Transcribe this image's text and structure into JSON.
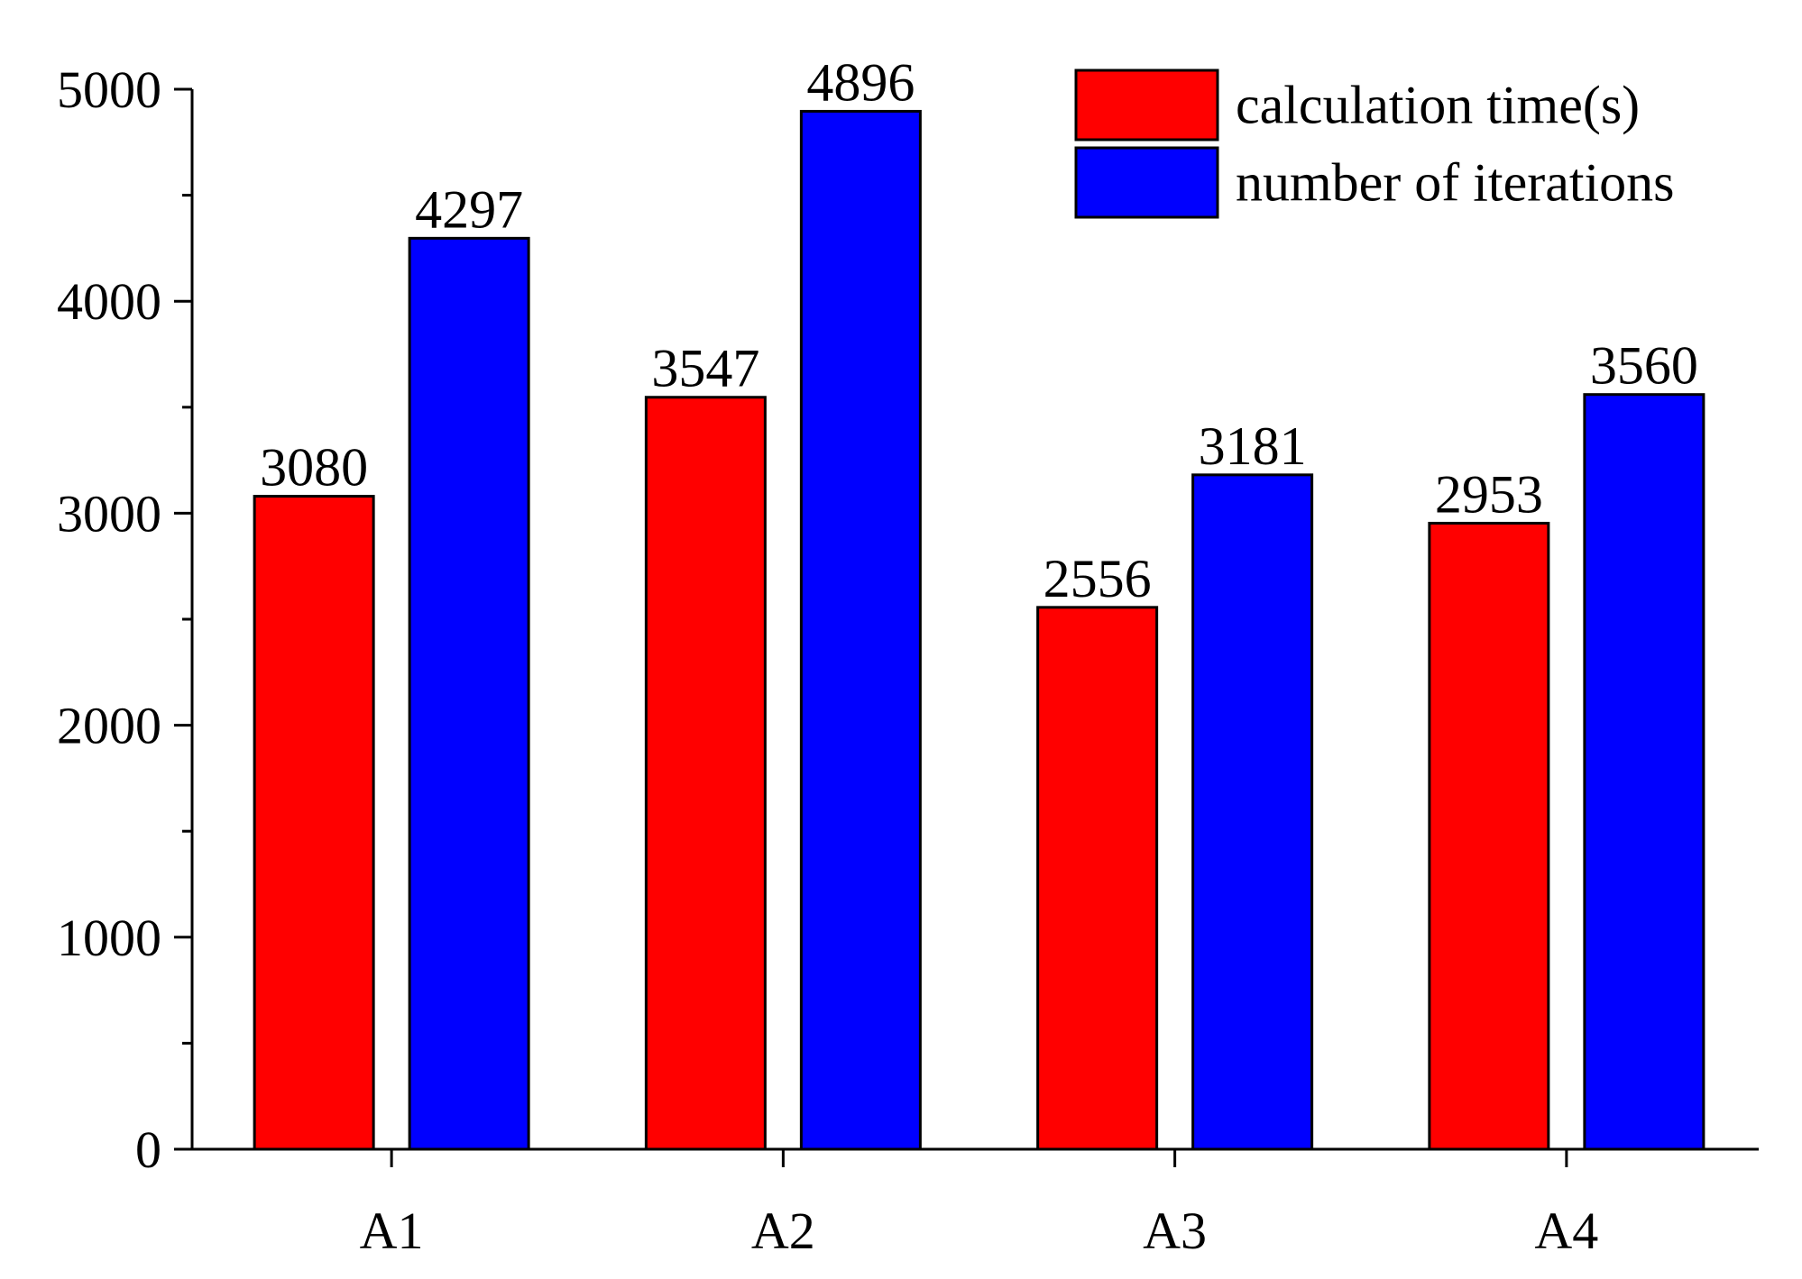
{
  "chart_data": {
    "type": "bar",
    "categories": [
      "A1",
      "A2",
      "A3",
      "A4"
    ],
    "series": [
      {
        "name": "calculation time(s)",
        "color": "#ff0000",
        "values": [
          3080,
          3547,
          2556,
          2953
        ],
        "labels": [
          "3080",
          "3547",
          "2556",
          "2953"
        ]
      },
      {
        "name": "number of iterations",
        "color": "#0000ff",
        "values": [
          4297,
          4896,
          3181,
          3560
        ],
        "labels": [
          "4297",
          "4896",
          "3181",
          "3560"
        ]
      }
    ],
    "ylim": [
      0,
      5000
    ],
    "yticks": [
      0,
      1000,
      2000,
      3000,
      4000,
      5000
    ],
    "ytick_labels": [
      "0",
      "1000",
      "2000",
      "3000",
      "4000",
      "5000"
    ],
    "yminor_step": 500,
    "grid": false,
    "legend_position": "top-right",
    "title": "",
    "xlabel": "",
    "ylabel": ""
  }
}
